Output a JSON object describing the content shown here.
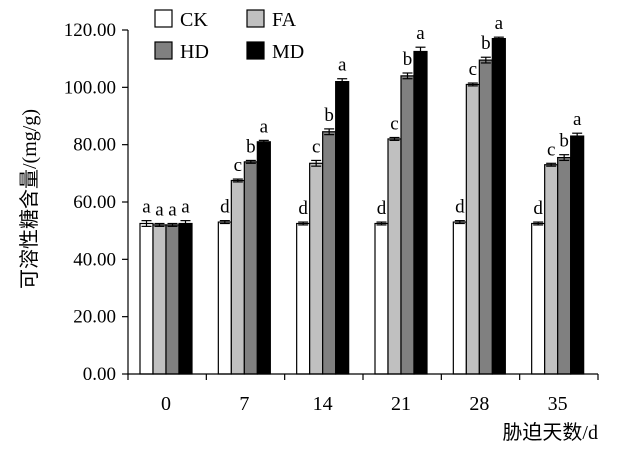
{
  "chart_data": {
    "type": "bar",
    "ylabel": "可溶性糖含量/(mg/g)",
    "xlabel": "胁迫天数/d",
    "ylim": [
      0,
      120
    ],
    "yticks": [
      "0.00",
      "20.00",
      "40.00",
      "60.00",
      "80.00",
      "100.00",
      "120.00"
    ],
    "ytick_values": [
      0,
      20,
      40,
      60,
      80,
      100,
      120
    ],
    "categories": [
      "0",
      "7",
      "14",
      "21",
      "28",
      "35"
    ],
    "legend_position": "top-left",
    "grid": false,
    "series": [
      {
        "name": "CK",
        "color": "#ffffff",
        "values": [
          52.5,
          53.0,
          52.5,
          52.5,
          53.0,
          52.5
        ],
        "errors": [
          1.0,
          0.5,
          0.5,
          0.5,
          0.5,
          0.5
        ],
        "labels": [
          "a",
          "d",
          "d",
          "d",
          "d",
          "d"
        ]
      },
      {
        "name": "FA",
        "color": "#c0c0c0",
        "values": [
          52.0,
          67.5,
          73.5,
          82.0,
          101.0,
          73.0
        ],
        "errors": [
          0.5,
          0.5,
          1.0,
          0.5,
          0.5,
          0.5
        ],
        "labels": [
          "a",
          "c",
          "c",
          "c",
          "c",
          "c"
        ]
      },
      {
        "name": "HD",
        "color": "#808080",
        "values": [
          52.0,
          74.0,
          84.5,
          104.0,
          109.5,
          75.5
        ],
        "errors": [
          0.5,
          0.5,
          1.0,
          1.0,
          1.0,
          1.0
        ],
        "labels": [
          "a",
          "b",
          "b",
          "b",
          "b",
          "b"
        ]
      },
      {
        "name": "MD",
        "color": "#000000",
        "values": [
          52.5,
          81.0,
          102.0,
          112.5,
          117.0,
          83.0
        ],
        "errors": [
          1.0,
          0.5,
          1.0,
          1.5,
          0.5,
          1.0
        ],
        "labels": [
          "a",
          "a",
          "a",
          "a",
          "a",
          "a"
        ]
      }
    ]
  }
}
